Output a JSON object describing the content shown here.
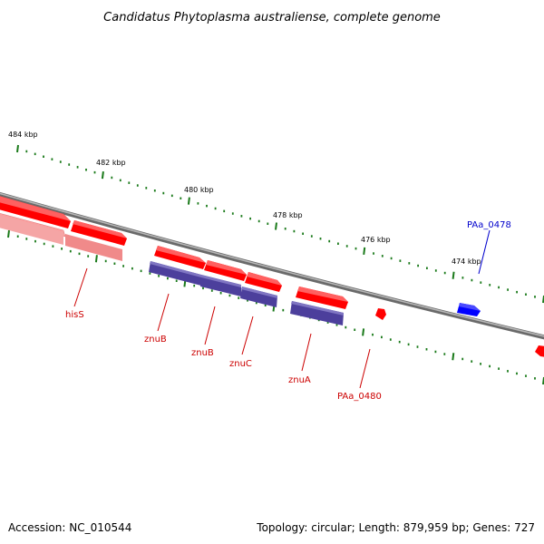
{
  "title": "Candidatus Phytoplasma australiense, complete genome",
  "footer": {
    "accession": "Accession: NC_010544",
    "summary": "Topology: circular; Length: 879,959 bp; Genes: 727"
  },
  "colors": {
    "forward": "#ff0000",
    "forward_light": "#f08080",
    "reverse": "#0000ff",
    "cds_track": "#4c3f9c",
    "backbone": "#808080",
    "tick": "#1a7a1a",
    "label_red": "#cc0000",
    "label_blue": "#0000cc"
  },
  "ruler": {
    "unit": "kbp",
    "labels": [
      "484 kbp",
      "482 kbp",
      "480 kbp",
      "478 kbp",
      "476 kbp",
      "474 kbp"
    ]
  },
  "genes": [
    {
      "name": "hisS",
      "strand": "reverse",
      "color": "red"
    },
    {
      "name": "znuB",
      "strand": "reverse",
      "color": "red"
    },
    {
      "name": "znuB",
      "strand": "reverse",
      "color": "red"
    },
    {
      "name": "znuC",
      "strand": "reverse",
      "color": "red"
    },
    {
      "name": "znuA",
      "strand": "reverse",
      "color": "red"
    },
    {
      "name": "PAa_0480",
      "strand": "reverse",
      "color": "red"
    },
    {
      "name": "PAa_0478",
      "strand": "forward",
      "color": "blue"
    }
  ]
}
